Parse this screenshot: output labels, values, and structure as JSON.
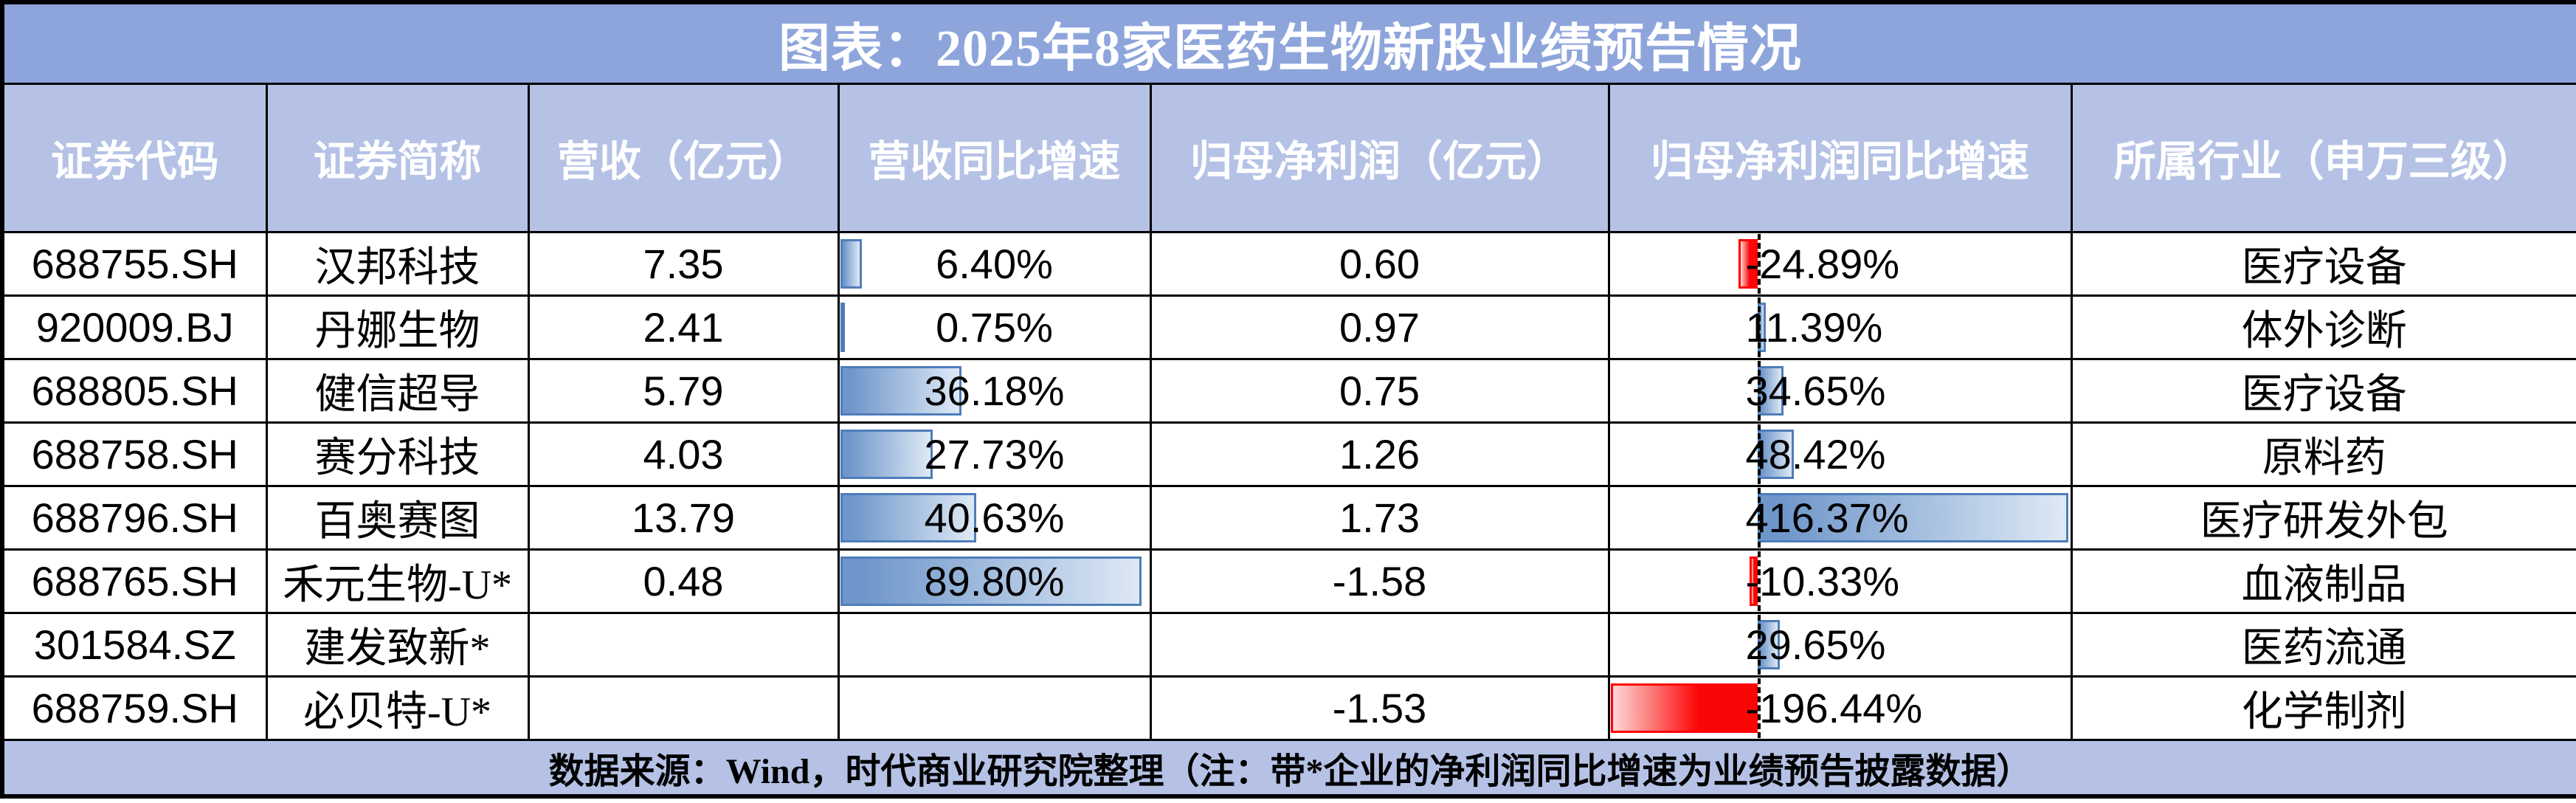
{
  "colors": {
    "title_bg": "#8EA5DC",
    "header_bg": "#B5C2E6",
    "header_text": "#FFFFFF",
    "grid_line": "#000000",
    "text": "#000000",
    "bar_blue_dark": "#6E96CA",
    "bar_blue_light": "#DEE9F5",
    "bar_blue_border": "#4E7DBB",
    "bar_red": "#FB0606",
    "bar_red_light": "#FDD8D6",
    "bar_red_border": "#FF0000"
  },
  "chart_data": {
    "type": "table",
    "title": "图表：2025年8家医药生物新股业绩预告情况",
    "footnote": "数据来源：Wind，时代商业研究院整理（注：带*企业的净利润同比增速为业绩预告披露数据）",
    "columns": [
      "证券代码",
      "证券简称",
      "营收（亿元）",
      "营收同比增速",
      "归母净利润（亿元）",
      "归母净利润同比增速",
      "所属行业（申万三级）"
    ],
    "data_bars": {
      "revenue_growth": {
        "axis_min": 0,
        "axis_max": 89.8,
        "positive_color": "blue-gradient"
      },
      "profit_growth": {
        "axis_min": -196.44,
        "axis_max": 416.37,
        "positive_color": "blue-gradient",
        "negative_color": "red-gradient",
        "zero_axis": "black-dashed"
      }
    },
    "rows": [
      {
        "code": "688755.SH",
        "name": "汉邦科技",
        "revenue": "7.35",
        "revenue_growth": {
          "value": 6.4,
          "label": "6.40%"
        },
        "net_profit": "0.60",
        "profit_growth": {
          "value": -24.89,
          "label": "-24.89%"
        },
        "industry": "医疗设备"
      },
      {
        "code": "920009.BJ",
        "name": "丹娜生物",
        "revenue": "2.41",
        "revenue_growth": {
          "value": 0.75,
          "label": "0.75%"
        },
        "net_profit": "0.97",
        "profit_growth": {
          "value": 11.39,
          "label": "11.39%"
        },
        "industry": "体外诊断"
      },
      {
        "code": "688805.SH",
        "name": "健信超导",
        "revenue": "5.79",
        "revenue_growth": {
          "value": 36.18,
          "label": "36.18%"
        },
        "net_profit": "0.75",
        "profit_growth": {
          "value": 34.65,
          "label": "34.65%"
        },
        "industry": "医疗设备"
      },
      {
        "code": "688758.SH",
        "name": "赛分科技",
        "revenue": "4.03",
        "revenue_growth": {
          "value": 27.73,
          "label": "27.73%"
        },
        "net_profit": "1.26",
        "profit_growth": {
          "value": 48.42,
          "label": "48.42%"
        },
        "industry": "原料药"
      },
      {
        "code": "688796.SH",
        "name": "百奥赛图",
        "revenue": "13.79",
        "revenue_growth": {
          "value": 40.63,
          "label": "40.63%"
        },
        "net_profit": "1.73",
        "profit_growth": {
          "value": 416.37,
          "label": "416.37%"
        },
        "industry": "医疗研发外包"
      },
      {
        "code": "688765.SH",
        "name": "禾元生物-U*",
        "revenue": "0.48",
        "revenue_growth": {
          "value": 89.8,
          "label": "89.80%"
        },
        "net_profit": "-1.58",
        "profit_growth": {
          "value": -10.33,
          "label": "-10.33%"
        },
        "industry": "血液制品"
      },
      {
        "code": "301584.SZ",
        "name": "建发致新*",
        "revenue": null,
        "revenue_growth": null,
        "net_profit": null,
        "profit_growth": {
          "value": 29.65,
          "label": "29.65%"
        },
        "industry": "医药流通"
      },
      {
        "code": "688759.SH",
        "name": "必贝特-U*",
        "revenue": null,
        "revenue_growth": null,
        "net_profit": "-1.53",
        "profit_growth": {
          "value": -196.44,
          "label": "-196.44%"
        },
        "industry": "化学制剂"
      }
    ]
  }
}
